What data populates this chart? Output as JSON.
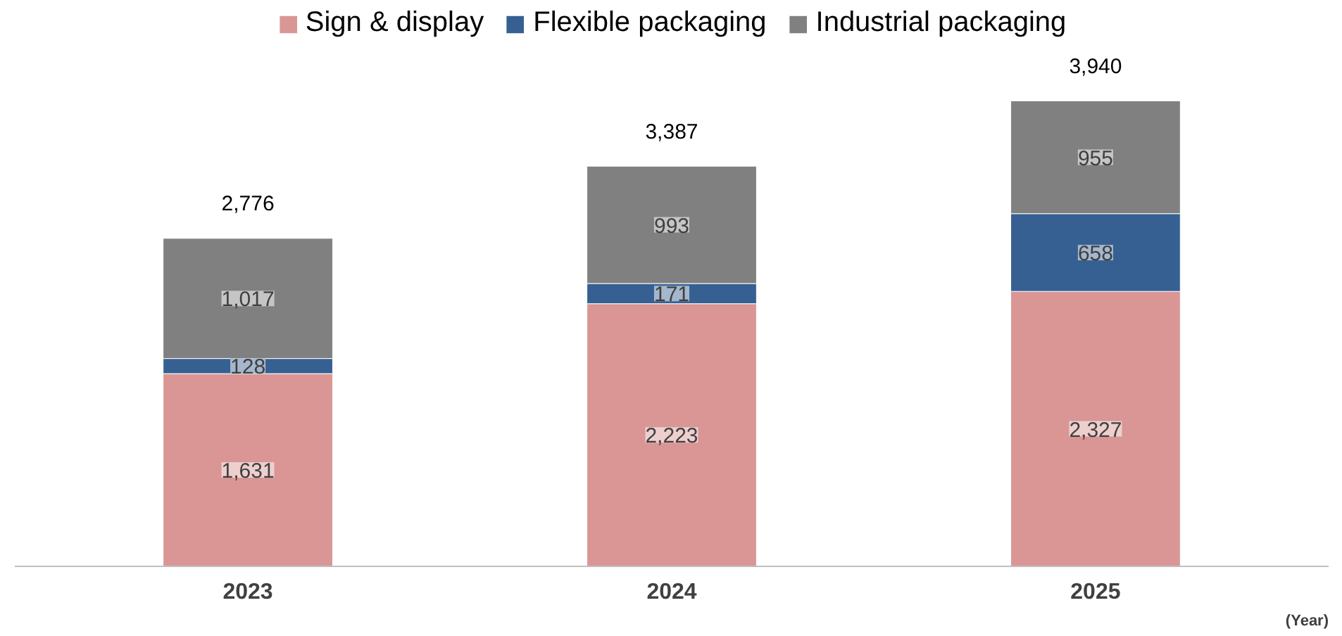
{
  "chart_data": {
    "type": "bar",
    "stacked": true,
    "xlabel": "(Year)",
    "categories": [
      "2023",
      "2024",
      "2025"
    ],
    "series": [
      {
        "name": "Sign & display",
        "color": "#d99694",
        "values": [
          1631,
          2223,
          2327
        ],
        "value_labels": [
          "1,631",
          "2,223",
          "2,327"
        ]
      },
      {
        "name": "Flexible packaging",
        "color": "#376092",
        "values": [
          128,
          171,
          658
        ],
        "value_labels": [
          "128",
          "171",
          "658"
        ]
      },
      {
        "name": "Industrial packaging",
        "color": "#808080",
        "values": [
          1017,
          993,
          955
        ],
        "value_labels": [
          "1,017",
          "993",
          "955"
        ]
      }
    ],
    "totals": [
      "2,776",
      "3,387",
      "3,940"
    ],
    "legend": "top",
    "grid": false
  }
}
